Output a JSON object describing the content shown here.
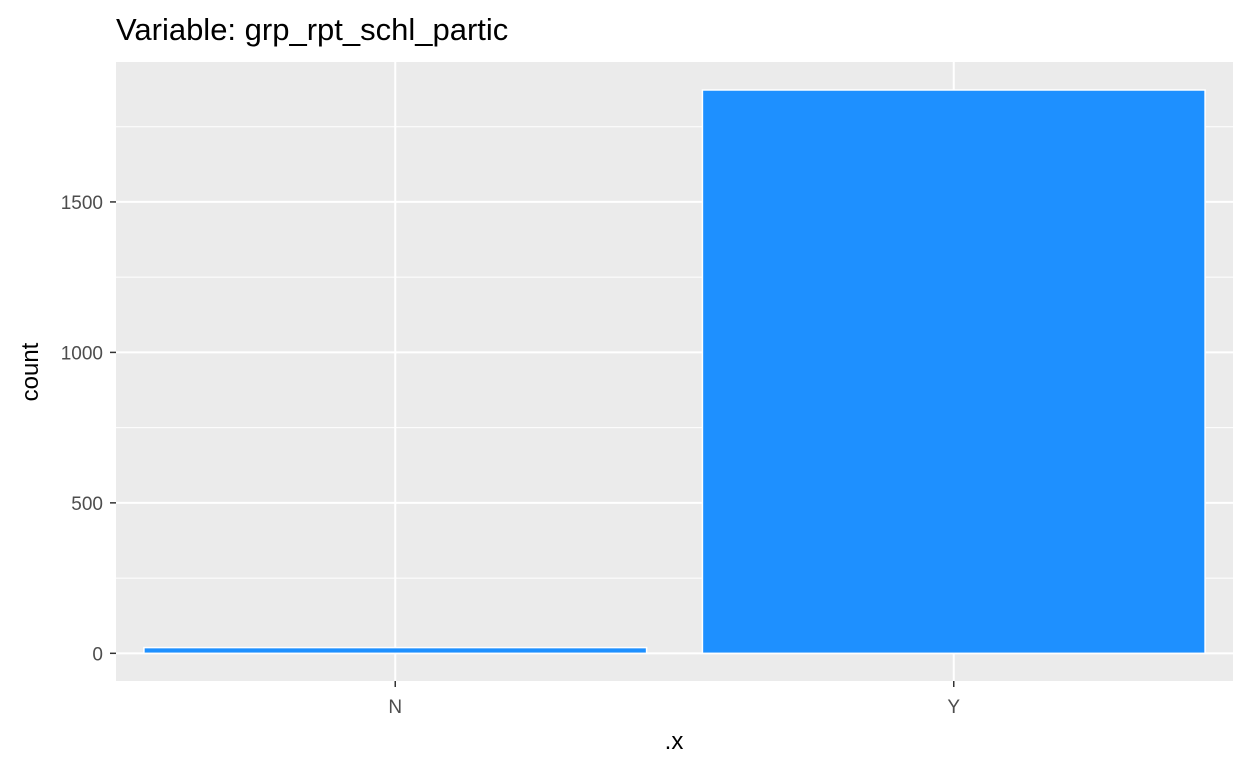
{
  "chart_data": {
    "type": "bar",
    "title": "Variable: grp_rpt_schl_partic",
    "xlabel": ".x",
    "ylabel": "count",
    "categories": [
      "N",
      "Y"
    ],
    "values": [
      19,
      1872
    ],
    "ylim": [
      -92,
      1965
    ],
    "yticks": [
      0,
      500,
      1000,
      1500
    ],
    "ytick_labels": [
      "0",
      "500",
      "1000",
      "1500"
    ],
    "grid": true,
    "legend": "none",
    "colors": {
      "bar_fill": "#1E90FF",
      "bar_outline": "#FFFFFF",
      "panel_background": "#EBEBEB",
      "grid": "#FFFFFF",
      "tick_text": "#4D4D4D",
      "axis_ticks": "#333333"
    }
  }
}
